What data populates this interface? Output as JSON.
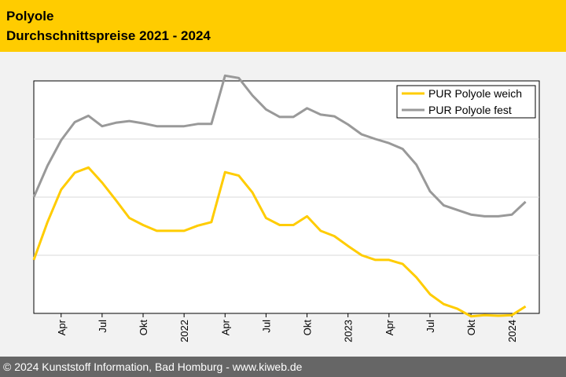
{
  "header": {
    "title": "Polyole",
    "subtitle": "Durchschnittspreise 2021 - 2024"
  },
  "footer": {
    "copyright": "© 2024 Kunststoff Information, Bad Homburg - www.kiweb.de"
  },
  "colors": {
    "header_bg": "#ffcc00",
    "footer_bg": "#666666",
    "series_weich": "#ffcc00",
    "series_fest": "#999999",
    "grid": "#d9d9d9"
  },
  "chart_data": {
    "type": "line",
    "title": "Polyole Durchschnittspreise 2021 - 2024",
    "xlabel": "",
    "ylabel": "",
    "y_axis_labels_shown": false,
    "ylim": [
      0,
      4
    ],
    "grid": "horizontal",
    "legend_position": "top-right",
    "x_month_index_range": [
      0,
      37
    ],
    "tick_labels": [
      {
        "label": "Apr",
        "month_index": 2
      },
      {
        "label": "Jul",
        "month_index": 5
      },
      {
        "label": "Okt",
        "month_index": 8
      },
      {
        "label": "2022",
        "month_index": 11
      },
      {
        "label": "Apr",
        "month_index": 14
      },
      {
        "label": "Jul",
        "month_index": 17
      },
      {
        "label": "Okt",
        "month_index": 20
      },
      {
        "label": "2023",
        "month_index": 23
      },
      {
        "label": "Apr",
        "month_index": 26
      },
      {
        "label": "Jul",
        "month_index": 29
      },
      {
        "label": "Okt",
        "month_index": 32
      },
      {
        "label": "2024",
        "month_index": 35
      }
    ],
    "series": [
      {
        "name": "PUR Polyole weich",
        "color": "#ffcc00",
        "x": [
          0,
          1,
          2,
          3,
          4,
          5,
          6,
          7,
          8,
          9,
          10,
          11,
          12,
          13,
          14,
          15,
          16,
          17,
          18,
          19,
          20,
          21,
          22,
          23,
          24,
          25,
          26,
          27,
          28,
          29,
          30,
          31,
          32,
          33,
          34,
          35,
          36
        ],
        "values": [
          0.92,
          1.57,
          2.13,
          2.42,
          2.51,
          2.25,
          1.95,
          1.64,
          1.52,
          1.42,
          1.42,
          1.42,
          1.51,
          1.57,
          2.43,
          2.37,
          2.08,
          1.64,
          1.52,
          1.52,
          1.67,
          1.42,
          1.33,
          1.16,
          1.0,
          0.92,
          0.92,
          0.85,
          0.62,
          0.33,
          0.16,
          0.08,
          -0.05,
          -0.03,
          -0.04,
          -0.03,
          0.12
        ]
      },
      {
        "name": "PUR Polyole fest",
        "color": "#999999",
        "x": [
          0,
          1,
          2,
          3,
          4,
          5,
          6,
          7,
          8,
          9,
          10,
          11,
          12,
          13,
          14,
          15,
          16,
          17,
          18,
          19,
          20,
          21,
          22,
          23,
          24,
          25,
          26,
          27,
          28,
          29,
          30,
          31,
          32,
          33,
          34,
          35,
          36
        ],
        "values": [
          2.0,
          2.54,
          2.98,
          3.29,
          3.4,
          3.22,
          3.28,
          3.31,
          3.27,
          3.22,
          3.22,
          3.22,
          3.26,
          3.26,
          4.09,
          4.05,
          3.75,
          3.51,
          3.38,
          3.38,
          3.53,
          3.42,
          3.39,
          3.25,
          3.08,
          3.0,
          2.93,
          2.83,
          2.56,
          2.1,
          1.86,
          1.78,
          1.7,
          1.67,
          1.67,
          1.7,
          1.92
        ]
      }
    ]
  }
}
